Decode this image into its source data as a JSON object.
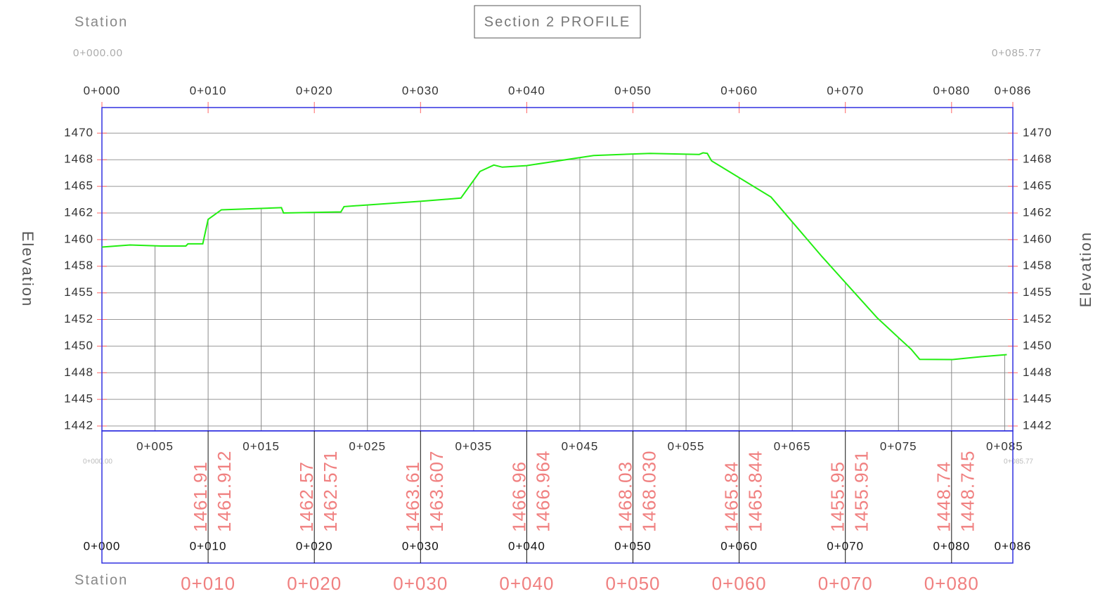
{
  "chart_data": {
    "type": "line",
    "title": "Section 2 PROFILE",
    "station_label": "Station",
    "elevation_label": "Elevation",
    "start_station": "0+000.00",
    "end_station": "0+085.77",
    "x": [
      0,
      2.65,
      5.6,
      7.9,
      8.1,
      9.5,
      10.0,
      11.25,
      16.9,
      17.1,
      22.5,
      22.8,
      30.1,
      33.8,
      35.6,
      36.9,
      37.7,
      40.0,
      46.3,
      51.6,
      56.25,
      56.6,
      57.0,
      57.4,
      63.0,
      67.8,
      73.0,
      75.0,
      76.2,
      77.0,
      80.1,
      82.75,
      85.2
    ],
    "series": [
      {
        "color": "#22ee11",
        "values": [
          1459.3,
          1459.5,
          1459.4,
          1459.4,
          1459.6,
          1459.6,
          1461.9,
          1462.8,
          1463.0,
          1462.5,
          1462.6,
          1463.1,
          1463.6,
          1463.9,
          1466.4,
          1467.0,
          1466.8,
          1466.95,
          1467.9,
          1468.1,
          1468.0,
          1468.15,
          1468.1,
          1467.4,
          1464.0,
          1458.4,
          1452.65,
          1450.8,
          1449.7,
          1448.75,
          1448.74,
          1449.0,
          1449.2
        ]
      }
    ],
    "xlim": [
      0,
      85.77
    ],
    "ylim": [
      1442.04,
      1472.4
    ],
    "xticks": [
      {
        "value": 0,
        "label": "0+000"
      },
      {
        "value": 10,
        "label": "0+010"
      },
      {
        "value": 20,
        "label": "0+020"
      },
      {
        "value": 30,
        "label": "0+030"
      },
      {
        "value": 40,
        "label": "0+040"
      },
      {
        "value": 50,
        "label": "0+050"
      },
      {
        "value": 60,
        "label": "0+060"
      },
      {
        "value": 70,
        "label": "0+070"
      },
      {
        "value": 80,
        "label": "0+080"
      },
      {
        "value": 85.77,
        "label": "0+086"
      }
    ],
    "xticks_minor": [
      {
        "value": 5,
        "label": "0+005"
      },
      {
        "value": 15,
        "label": "0+015"
      },
      {
        "value": 25,
        "label": "0+025"
      },
      {
        "value": 35,
        "label": "0+035"
      },
      {
        "value": 45,
        "label": "0+045"
      },
      {
        "value": 55,
        "label": "0+055"
      },
      {
        "value": 65,
        "label": "0+065"
      },
      {
        "value": 75,
        "label": "0+075"
      },
      {
        "value": 85,
        "label": "0+085"
      }
    ],
    "yticks": [
      1470,
      {
        "value": 1467.5,
        "label": "1468"
      },
      1465,
      {
        "value": 1462.5,
        "label": "1462"
      },
      1460,
      {
        "value": 1457.5,
        "label": "1458"
      },
      1455,
      {
        "value": 1452.5,
        "label": "1452"
      },
      1450,
      {
        "value": 1447.5,
        "label": "1448"
      },
      1445,
      {
        "value": 1442.5,
        "label": "1442"
      }
    ],
    "band_stations": [
      10,
      20,
      30,
      40,
      50,
      60,
      70,
      80
    ],
    "band_elevations_a": [
      1461.91,
      1462.57,
      1463.61,
      1466.96,
      1468.03,
      1465.84,
      1455.95,
      1448.74
    ],
    "band_elevations_b": [
      1461.912,
      1462.571,
      1463.607,
      1466.964,
      {
        "value": 1468.03,
        "label": "1468.030"
      },
      1465.844,
      1455.951,
      1448.745
    ],
    "grid": true
  }
}
